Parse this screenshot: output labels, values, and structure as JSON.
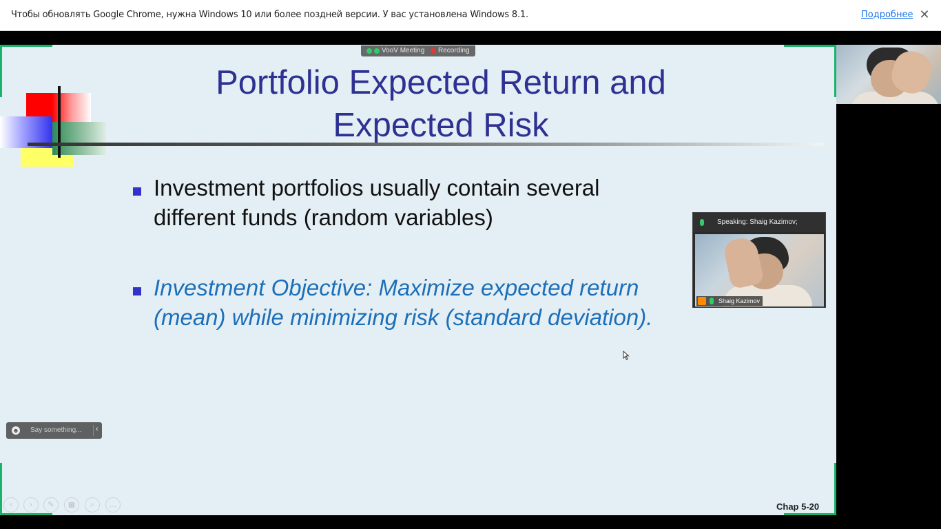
{
  "infobar": {
    "message": "Чтобы обновлять Google Chrome, нужна Windows 10 или более поздней версии. У вас установлена Windows 8.1.",
    "link": "Подробнее",
    "close": "✕"
  },
  "voov": {
    "app": "VooV Meeting",
    "recording": "Recording"
  },
  "slide": {
    "title_line1": "Portfolio Expected Return and",
    "title_line2": "Expected Risk",
    "bullet1_line1": "Investment portfolios usually contain several",
    "bullet1_line2": "different funds (random variables)",
    "bullet2_line1": "Investment Objective: Maximize expected return",
    "bullet2_line2": "(mean) while minimizing risk (standard deviation).",
    "page_label": "Chap 5-20"
  },
  "chat": {
    "placeholder": "Say something...",
    "collapse": "‹"
  },
  "video": {
    "speaking": "Speaking: Shaig Kazimov;",
    "participant_name": "Shaig Kazimov"
  },
  "controls": [
    "‹",
    "›",
    "✎",
    "▦",
    "⌕",
    "…"
  ],
  "colors": {
    "title": "#2e3192",
    "bullet2": "#1c6fb8",
    "corner_accent": "#1bb36a",
    "mic_active": "#2fcc6a"
  }
}
